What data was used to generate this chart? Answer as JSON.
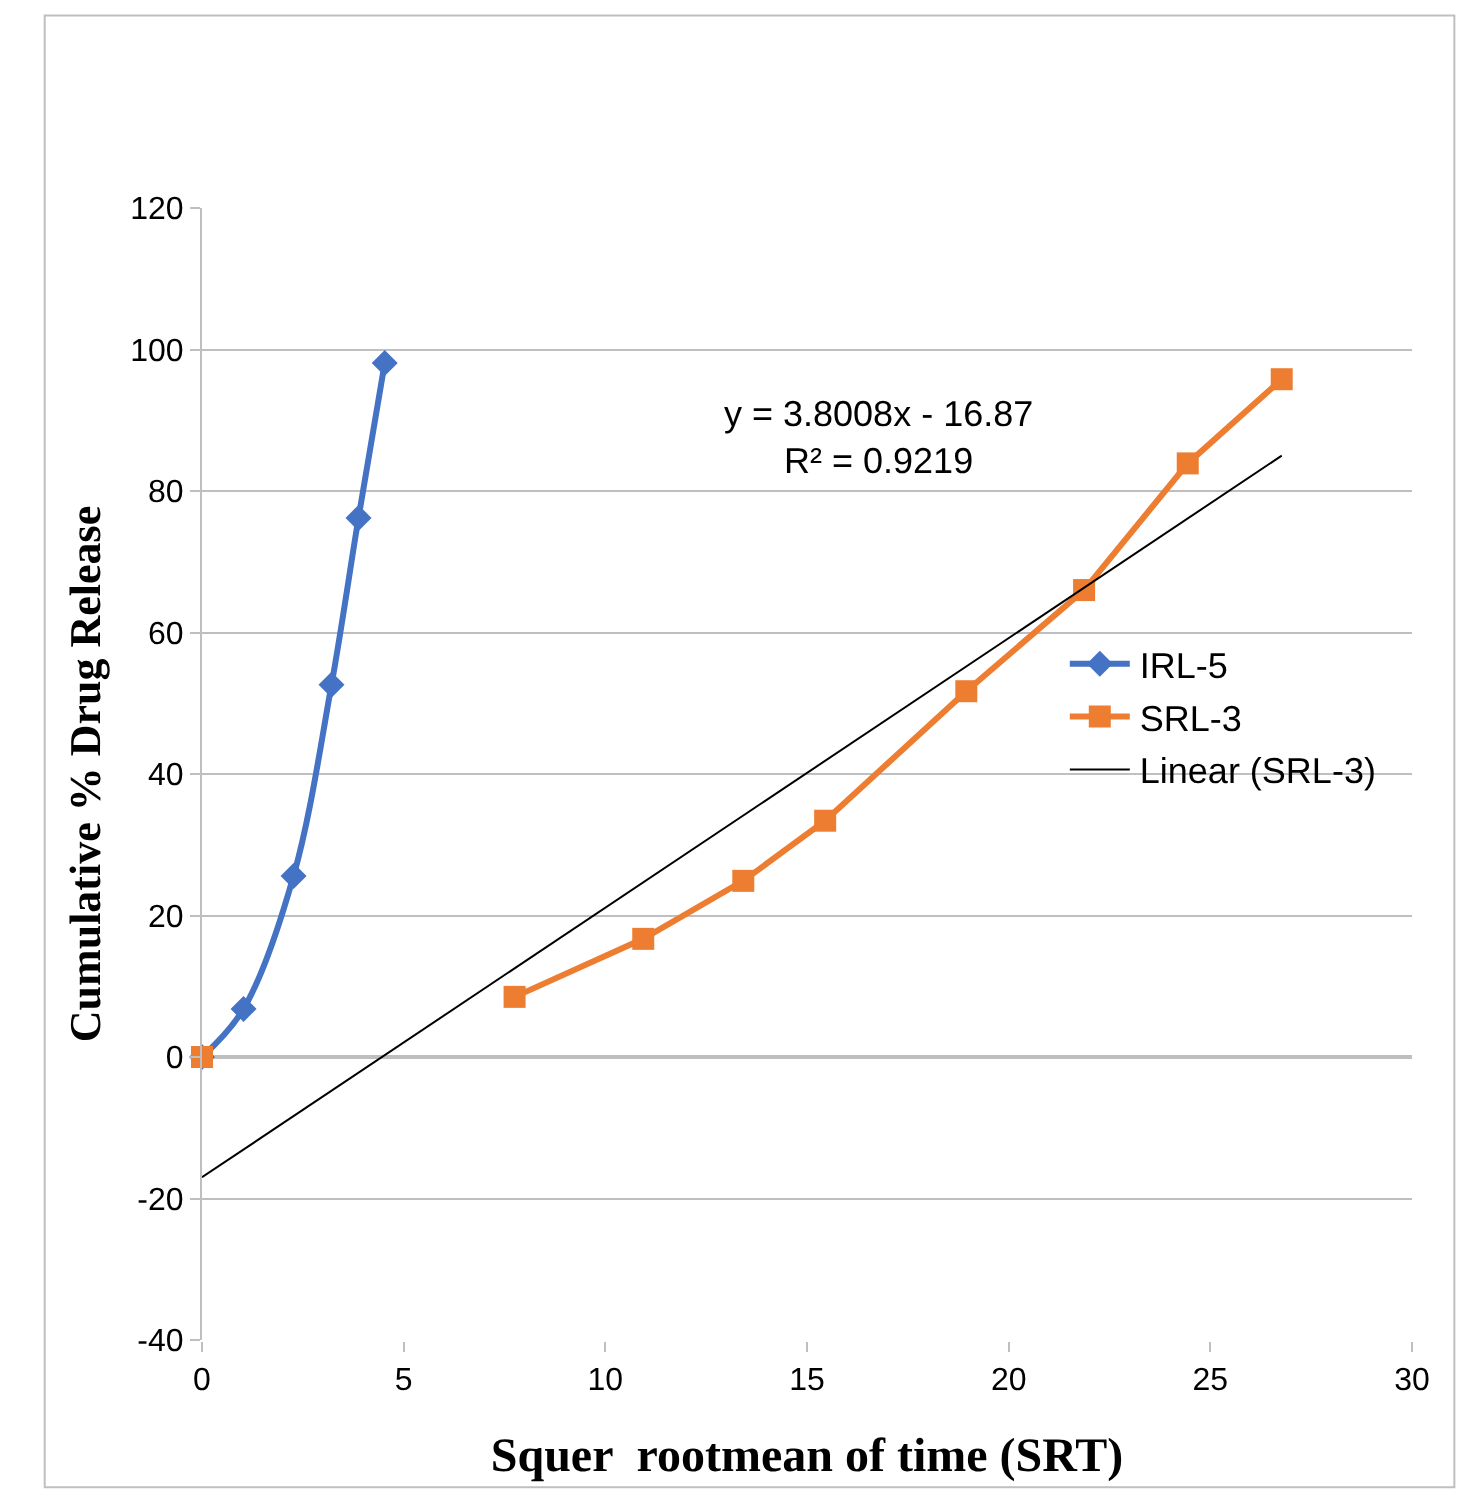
{
  "chart_data": {
    "type": "line",
    "xlabel": "Squer  rootmean of time (SRT)",
    "ylabel": "Cumulative % Drug Release",
    "series": [
      {
        "name": "IRL-5",
        "color": "#4472c4",
        "marker": "diamond",
        "x": [
          0,
          1.03,
          2.27,
          3.21,
          3.88,
          4.53
        ],
        "values": [
          0,
          6.8,
          25.6,
          52.6,
          76.2,
          98.1
        ]
      },
      {
        "name": "SRL-3",
        "color": "#ed7d31",
        "marker": "square",
        "x": [
          7.75,
          10.94,
          13.42,
          15.45,
          18.95,
          21.87,
          24.44,
          26.77
        ],
        "values": [
          8.5,
          16.7,
          24.9,
          33.4,
          51.7,
          66.0,
          83.9,
          95.8
        ]
      },
      {
        "name": "Linear (SRL-3)",
        "color": "#000000",
        "marker": "none",
        "x": [
          0,
          26.77
        ],
        "values": [
          -17,
          85
        ]
      },
      {
        "type": "scatter",
        "color": "#ed7d31",
        "marker": "square",
        "x": [
          0
        ],
        "values": [
          0
        ]
      }
    ],
    "annotations": [
      "y = 3.8008x - 16.87\nR² = 0.9219"
    ],
    "xlim": [
      0,
      30
    ],
    "xticks": [
      0,
      5,
      10,
      15,
      20,
      25,
      30
    ],
    "ylim": [
      -40,
      120
    ],
    "yticks": [
      -40,
      -20,
      0,
      20,
      40,
      60,
      80,
      100,
      120
    ],
    "grid": "y",
    "legend": "right"
  }
}
